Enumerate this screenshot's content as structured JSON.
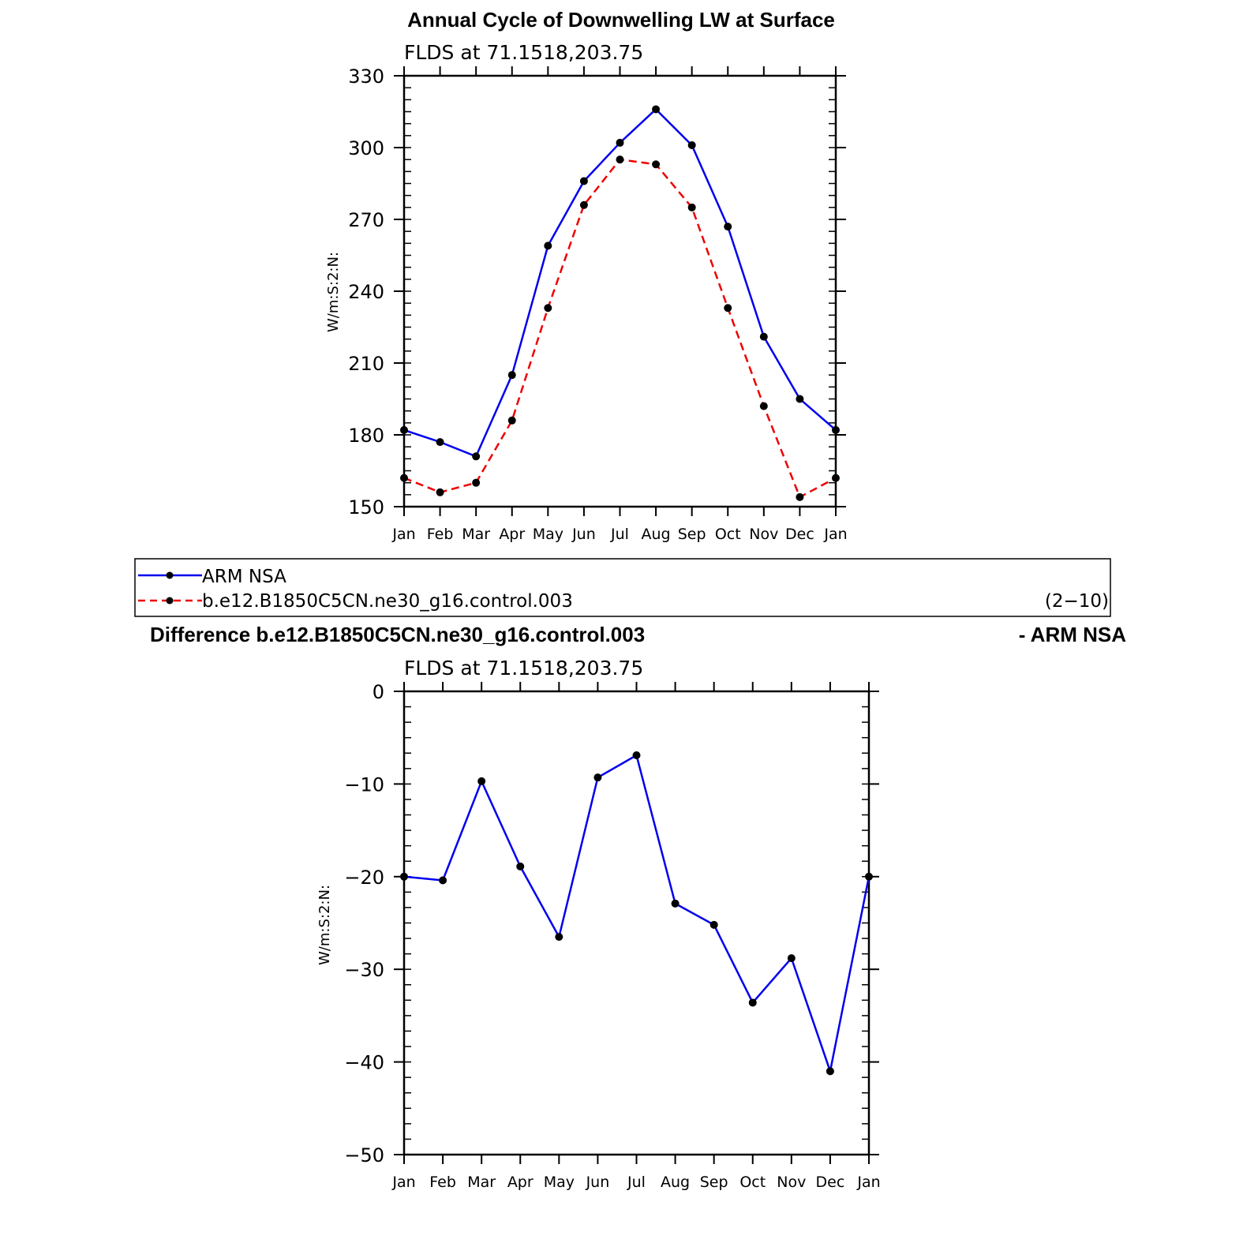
{
  "colors": {
    "obs": "#0000ee",
    "model": "#ee0000",
    "marker": "#000000",
    "axis": "#000000"
  },
  "chart_data": [
    {
      "type": "line",
      "title": "Annual Cycle of Downwelling LW at Surface",
      "subtitle": "FLDS  at  71.1518,203.75",
      "ylabel": "W/m:S:2:N:",
      "ylim": [
        150,
        330
      ],
      "yticks": [
        "330",
        "300",
        "270",
        "240",
        "210",
        "180",
        "150"
      ],
      "ytick_values": [
        330,
        300,
        270,
        240,
        210,
        180,
        150
      ],
      "categories": [
        "Jan",
        "Feb",
        "Mar",
        "Apr",
        "May",
        "Jun",
        "Jul",
        "Aug",
        "Sep",
        "Oct",
        "Nov",
        "Dec",
        "Jan"
      ],
      "series": [
        {
          "name": "ARM NSA",
          "line_style": "solid",
          "color": "#0000ee",
          "values": [
            182,
            177,
            171,
            205,
            259,
            286,
            302,
            316,
            301,
            267,
            221,
            195,
            182
          ]
        },
        {
          "name": "b.e12.B1850C5CN.ne30_g16.control.003",
          "line_style": "dashed",
          "color": "#ee0000",
          "values": [
            162,
            156,
            160,
            186,
            233,
            276,
            295,
            293,
            275,
            233,
            192,
            154,
            162
          ]
        }
      ],
      "legend": {
        "placement": "bottom",
        "entries": [
          "ARM NSA",
          "b.e12.B1850C5CN.ne30_g16.control.003"
        ],
        "note": "(2−10)"
      }
    },
    {
      "type": "line",
      "title_left": "Difference b.e12.B1850C5CN.ne30_g16.control.003",
      "title_right": "- ARM NSA",
      "subtitle": "FLDS  at  71.1518,203.75",
      "ylabel": "W/m:S:2:N:",
      "ylim": [
        -50,
        0
      ],
      "yticks": [
        "0",
        "−10",
        "−20",
        "−30",
        "−40",
        "−50"
      ],
      "ytick_values": [
        0,
        -10,
        -20,
        -30,
        -40,
        -50
      ],
      "categories": [
        "Jan",
        "Feb",
        "Mar",
        "Apr",
        "May",
        "Jun",
        "Jul",
        "Aug",
        "Sep",
        "Oct",
        "Nov",
        "Dec",
        "Jan"
      ],
      "series": [
        {
          "line_style": "solid",
          "color": "#0000ee",
          "values": [
            -20,
            -20.4,
            -9.7,
            -18.9,
            -26.5,
            -9.3,
            -6.9,
            -22.9,
            -25.2,
            -33.6,
            -28.8,
            -41,
            -20
          ]
        }
      ]
    }
  ]
}
